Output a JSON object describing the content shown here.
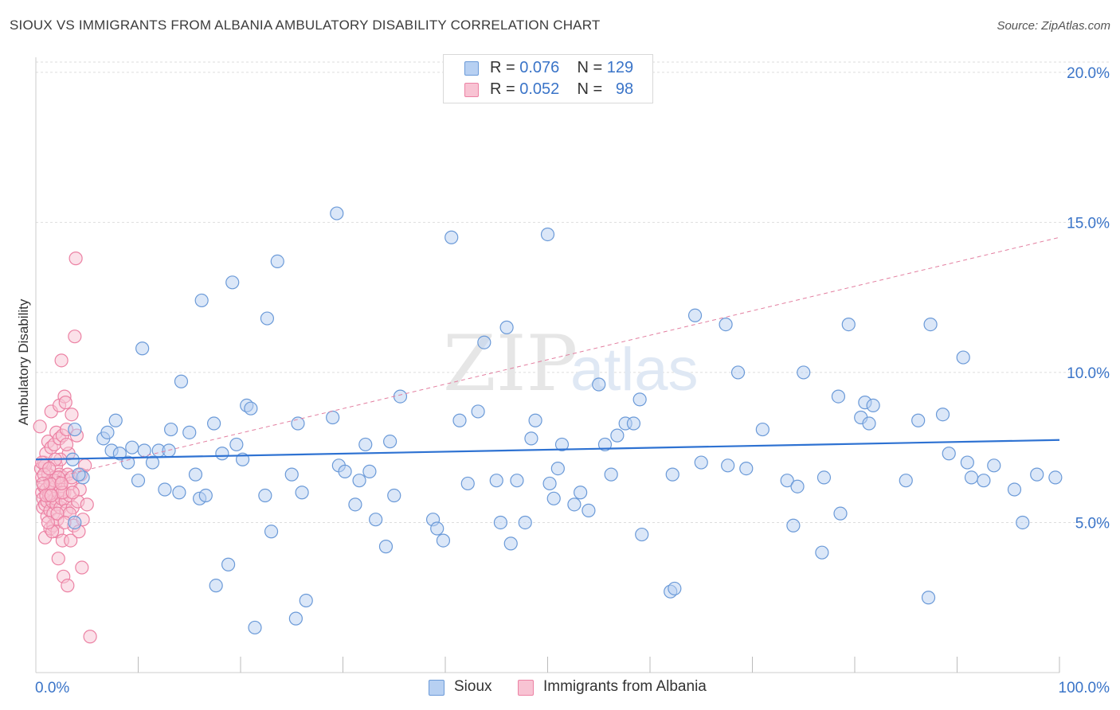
{
  "title": "SIOUX VS IMMIGRANTS FROM ALBANIA AMBULATORY DISABILITY CORRELATION CHART",
  "source": "Source: ZipAtlas.com",
  "watermark": {
    "zip": "ZIP",
    "atlas": "atlas"
  },
  "legend_top": {
    "rows": [
      {
        "r_label": "R =",
        "r_value": "0.076",
        "n_label": "N =",
        "n_value": "129"
      },
      {
        "r_label": "R =",
        "r_value": "0.052",
        "n_label": "N =",
        "n_value": "98"
      }
    ]
  },
  "legend_bottom": [
    "Sioux",
    "Immigrants from Albania"
  ],
  "colors": {
    "sioux_fill": "#b7d0f2",
    "sioux_stroke": "#6b9ad8",
    "sioux_line": "#2e72d2",
    "albania_fill": "#f8c3d3",
    "albania_stroke": "#ec82a4",
    "albania_line": "#e37fa0",
    "tick_label": "#3a74c8",
    "grid": "#dddddd"
  },
  "chart_data": {
    "type": "scatter",
    "title": "SIOUX VS IMMIGRANTS FROM ALBANIA AMBULATORY DISABILITY CORRELATION CHART",
    "xlabel": "",
    "ylabel": "Ambulatory Disability",
    "xlim": [
      0,
      100
    ],
    "ylim": [
      0,
      20.5
    ],
    "x_tick_labels": [
      "0.0%",
      "100.0%"
    ],
    "y_ticks": [
      5,
      10,
      15,
      20
    ],
    "y_tick_labels": [
      "5.0%",
      "10.0%",
      "15.0%",
      "20.0%"
    ],
    "grid": true,
    "legend_position": "top-center",
    "series": [
      {
        "name": "Sioux",
        "R": 0.076,
        "N": 129,
        "trend": {
          "x": [
            0,
            100
          ],
          "y": [
            7.1,
            7.75
          ],
          "style": "solid"
        },
        "points": [
          [
            3.8,
            8.1
          ],
          [
            3.6,
            7.1
          ],
          [
            3.8,
            5.0
          ],
          [
            4.6,
            6.5
          ],
          [
            4.2,
            6.6
          ],
          [
            6.6,
            7.8
          ],
          [
            7.0,
            8.0
          ],
          [
            7.8,
            8.4
          ],
          [
            7.4,
            7.4
          ],
          [
            8.2,
            7.3
          ],
          [
            9.0,
            7.0
          ],
          [
            9.4,
            7.5
          ],
          [
            10.0,
            6.4
          ],
          [
            10.4,
            10.8
          ],
          [
            10.6,
            7.4
          ],
          [
            11.4,
            7.0
          ],
          [
            12.0,
            7.4
          ],
          [
            12.6,
            6.1
          ],
          [
            13.0,
            7.4
          ],
          [
            13.2,
            8.1
          ],
          [
            14.0,
            6.0
          ],
          [
            14.2,
            9.7
          ],
          [
            15.0,
            8.0
          ],
          [
            15.6,
            6.6
          ],
          [
            16.0,
            5.8
          ],
          [
            16.2,
            12.4
          ],
          [
            16.6,
            5.9
          ],
          [
            17.4,
            8.3
          ],
          [
            17.6,
            2.9
          ],
          [
            18.2,
            7.3
          ],
          [
            18.8,
            3.6
          ],
          [
            19.2,
            13.0
          ],
          [
            19.6,
            7.6
          ],
          [
            20.2,
            7.1
          ],
          [
            20.6,
            8.9
          ],
          [
            21.0,
            8.8
          ],
          [
            21.4,
            1.5
          ],
          [
            22.4,
            5.9
          ],
          [
            22.6,
            11.8
          ],
          [
            23.0,
            4.7
          ],
          [
            23.6,
            13.7
          ],
          [
            25.0,
            6.6
          ],
          [
            25.4,
            1.8
          ],
          [
            25.6,
            8.3
          ],
          [
            26.0,
            6.0
          ],
          [
            26.4,
            2.4
          ],
          [
            29.0,
            8.5
          ],
          [
            29.4,
            15.3
          ],
          [
            29.6,
            6.9
          ],
          [
            30.2,
            6.7
          ],
          [
            31.2,
            5.6
          ],
          [
            31.6,
            6.4
          ],
          [
            32.2,
            7.6
          ],
          [
            32.6,
            6.7
          ],
          [
            33.2,
            5.1
          ],
          [
            34.2,
            4.2
          ],
          [
            34.6,
            7.7
          ],
          [
            35.0,
            5.9
          ],
          [
            35.6,
            9.2
          ],
          [
            38.8,
            5.1
          ],
          [
            39.2,
            4.8
          ],
          [
            39.8,
            4.4
          ],
          [
            40.6,
            14.5
          ],
          [
            41.4,
            8.4
          ],
          [
            42.2,
            6.3
          ],
          [
            43.2,
            8.7
          ],
          [
            43.8,
            11.0
          ],
          [
            45.0,
            6.4
          ],
          [
            45.4,
            5.0
          ],
          [
            46.0,
            11.5
          ],
          [
            46.4,
            4.3
          ],
          [
            47.0,
            6.4
          ],
          [
            47.8,
            5.0
          ],
          [
            48.4,
            7.8
          ],
          [
            48.8,
            8.4
          ],
          [
            50.0,
            14.6
          ],
          [
            50.2,
            6.3
          ],
          [
            50.6,
            5.8
          ],
          [
            51.0,
            6.8
          ],
          [
            51.4,
            7.6
          ],
          [
            52.6,
            5.6
          ],
          [
            53.2,
            6.0
          ],
          [
            54.0,
            5.4
          ],
          [
            55.0,
            9.6
          ],
          [
            55.6,
            7.6
          ],
          [
            56.2,
            6.6
          ],
          [
            56.8,
            7.9
          ],
          [
            57.6,
            8.3
          ],
          [
            58.4,
            8.3
          ],
          [
            59.0,
            9.1
          ],
          [
            59.2,
            4.6
          ],
          [
            62.0,
            2.7
          ],
          [
            62.2,
            6.6
          ],
          [
            62.4,
            2.8
          ],
          [
            64.4,
            11.9
          ],
          [
            65.0,
            7.0
          ],
          [
            67.4,
            11.6
          ],
          [
            67.6,
            6.9
          ],
          [
            68.6,
            10.0
          ],
          [
            69.4,
            6.8
          ],
          [
            71.0,
            8.1
          ],
          [
            73.4,
            6.4
          ],
          [
            74.0,
            4.9
          ],
          [
            74.4,
            6.2
          ],
          [
            75.0,
            10.0
          ],
          [
            76.8,
            4.0
          ],
          [
            77.0,
            6.5
          ],
          [
            78.4,
            9.2
          ],
          [
            78.6,
            5.3
          ],
          [
            79.4,
            11.6
          ],
          [
            80.6,
            8.5
          ],
          [
            81.0,
            9.0
          ],
          [
            81.4,
            8.3
          ],
          [
            81.8,
            8.9
          ],
          [
            85.0,
            6.4
          ],
          [
            86.2,
            8.4
          ],
          [
            87.2,
            2.5
          ],
          [
            87.4,
            11.6
          ],
          [
            88.6,
            8.6
          ],
          [
            89.2,
            7.3
          ],
          [
            90.6,
            10.5
          ],
          [
            91.0,
            7.0
          ],
          [
            91.4,
            6.5
          ],
          [
            92.6,
            6.4
          ],
          [
            93.6,
            6.9
          ],
          [
            95.6,
            6.1
          ],
          [
            96.4,
            5.0
          ],
          [
            97.8,
            6.6
          ],
          [
            99.6,
            6.5
          ]
        ]
      },
      {
        "name": "Immigrants from Albania",
        "R": 0.052,
        "N": 98,
        "trend": {
          "x": [
            0,
            100
          ],
          "y": [
            6.35,
            14.5
          ],
          "style": "dashed"
        },
        "points": [
          [
            0.4,
            8.2
          ],
          [
            0.5,
            6.8
          ],
          [
            0.6,
            6.5
          ],
          [
            0.6,
            6.0
          ],
          [
            0.7,
            5.8
          ],
          [
            0.7,
            5.5
          ],
          [
            0.8,
            7.0
          ],
          [
            0.8,
            6.2
          ],
          [
            0.9,
            5.6
          ],
          [
            0.9,
            4.5
          ],
          [
            1.0,
            7.3
          ],
          [
            1.0,
            6.1
          ],
          [
            1.1,
            5.7
          ],
          [
            1.1,
            5.2
          ],
          [
            1.2,
            7.7
          ],
          [
            1.2,
            6.6
          ],
          [
            1.3,
            6.0
          ],
          [
            1.3,
            5.9
          ],
          [
            1.4,
            5.4
          ],
          [
            1.4,
            4.8
          ],
          [
            1.5,
            8.7
          ],
          [
            1.5,
            7.5
          ],
          [
            1.5,
            6.4
          ],
          [
            1.6,
            6.1
          ],
          [
            1.6,
            5.7
          ],
          [
            1.7,
            5.3
          ],
          [
            1.7,
            4.9
          ],
          [
            1.8,
            7.6
          ],
          [
            1.8,
            6.5
          ],
          [
            1.9,
            6.2
          ],
          [
            1.9,
            5.8
          ],
          [
            2.0,
            8.0
          ],
          [
            2.0,
            6.9
          ],
          [
            2.0,
            5.6
          ],
          [
            2.1,
            5.1
          ],
          [
            2.1,
            4.7
          ],
          [
            2.2,
            6.0
          ],
          [
            2.2,
            3.8
          ],
          [
            2.3,
            8.9
          ],
          [
            2.3,
            7.8
          ],
          [
            2.3,
            6.6
          ],
          [
            2.4,
            6.2
          ],
          [
            2.4,
            5.5
          ],
          [
            2.5,
            10.4
          ],
          [
            2.5,
            5.8
          ],
          [
            2.6,
            7.9
          ],
          [
            2.6,
            4.4
          ],
          [
            2.7,
            6.5
          ],
          [
            2.7,
            3.2
          ],
          [
            2.8,
            9.2
          ],
          [
            2.8,
            6.0
          ],
          [
            2.9,
            5.7
          ],
          [
            3.0,
            8.1
          ],
          [
            3.0,
            5.4
          ],
          [
            3.1,
            6.6
          ],
          [
            3.1,
            2.9
          ],
          [
            3.2,
            7.3
          ],
          [
            3.3,
            5.9
          ],
          [
            3.4,
            6.3
          ],
          [
            3.4,
            4.4
          ],
          [
            3.5,
            8.6
          ],
          [
            3.6,
            5.5
          ],
          [
            3.7,
            4.9
          ],
          [
            3.8,
            11.2
          ],
          [
            3.9,
            13.8
          ],
          [
            4.0,
            7.9
          ],
          [
            4.1,
            5.7
          ],
          [
            4.3,
            6.1
          ],
          [
            4.4,
            6.6
          ],
          [
            4.5,
            3.5
          ],
          [
            4.6,
            5.1
          ],
          [
            4.8,
            6.9
          ],
          [
            5.0,
            5.6
          ],
          [
            5.3,
            1.2
          ],
          [
            0.9,
            6.9
          ],
          [
            1.6,
            4.7
          ],
          [
            2.4,
            7.1
          ],
          [
            1.2,
            5.0
          ],
          [
            0.6,
            7.0
          ],
          [
            1.8,
            6.4
          ],
          [
            2.9,
            9.0
          ],
          [
            3.3,
            5.3
          ],
          [
            3.5,
            6.5
          ],
          [
            2.2,
            6.5
          ],
          [
            1.4,
            6.3
          ],
          [
            1.0,
            5.9
          ],
          [
            0.8,
            6.6
          ],
          [
            2.6,
            6.0
          ],
          [
            3.0,
            7.6
          ],
          [
            1.9,
            7.1
          ],
          [
            2.1,
            5.3
          ],
          [
            0.7,
            6.3
          ],
          [
            1.5,
            5.9
          ],
          [
            2.8,
            5.0
          ],
          [
            3.6,
            6.0
          ],
          [
            1.3,
            6.8
          ],
          [
            2.5,
            6.3
          ],
          [
            4.2,
            4.7
          ]
        ]
      }
    ]
  }
}
